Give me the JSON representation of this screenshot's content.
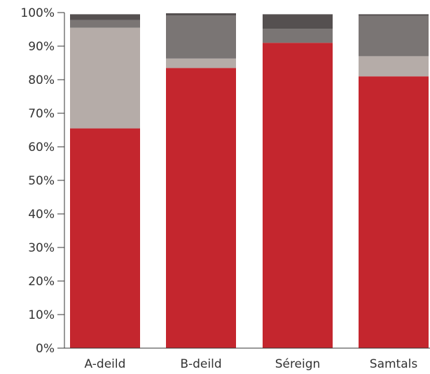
{
  "chart_data": {
    "type": "bar",
    "stacked": true,
    "title": "",
    "xlabel": "",
    "ylabel": "",
    "ylim": [
      0,
      100
    ],
    "yticks": [
      "0%",
      "10%",
      "20%",
      "30%",
      "40%",
      "50%",
      "60%",
      "70%",
      "80%",
      "90%",
      "100%"
    ],
    "categories": [
      "A-deild",
      "B-deild",
      "Séreign",
      "Samtals"
    ],
    "grid": false,
    "legend": "none",
    "series": [
      {
        "color": "#c4262e",
        "values": [
          65.5,
          83.5,
          91.0,
          81.0
        ]
      },
      {
        "color": "#b5aca8",
        "values": [
          30.0,
          2.8,
          0.0,
          6.0
        ]
      },
      {
        "color": "#7a7574",
        "values": [
          2.3,
          12.8,
          4.2,
          12.0
        ]
      },
      {
        "color": "#555050",
        "values": [
          1.7,
          0.7,
          4.3,
          0.5
        ]
      }
    ]
  }
}
